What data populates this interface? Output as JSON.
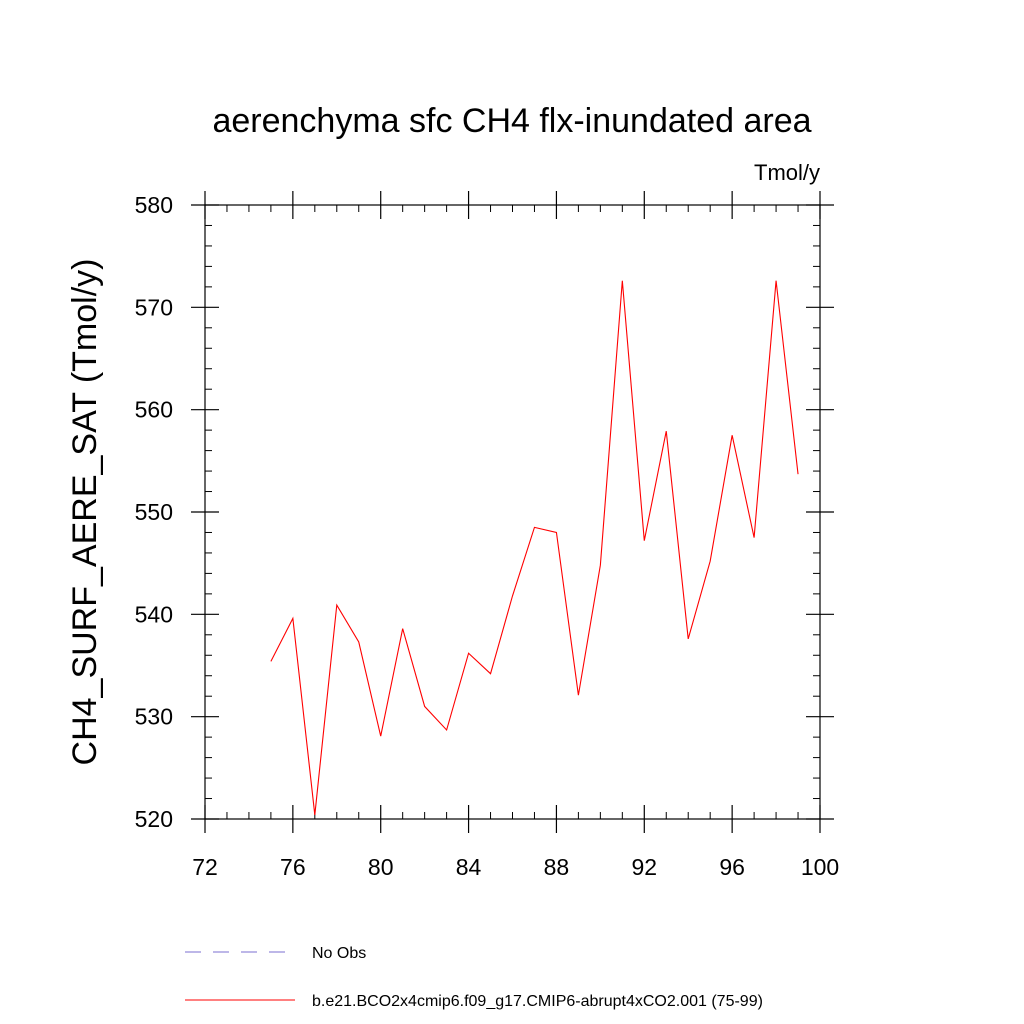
{
  "chart_data": {
    "type": "line",
    "title": "aerenchyma sfc CH4 flx-inundated area",
    "units": "Tmol/y",
    "ylabel": "CH4_SURF_AERE_SAT  (Tmol/y)",
    "xlabel": "",
    "xlim": [
      72,
      100
    ],
    "ylim": [
      520,
      580
    ],
    "xticks": [
      72,
      76,
      80,
      84,
      88,
      92,
      96,
      100
    ],
    "yticks": [
      520,
      530,
      540,
      550,
      560,
      570,
      580
    ],
    "x_minor_step": 1,
    "y_minor_step": 2,
    "grid": false,
    "legend_position": "bottom",
    "series": [
      {
        "name": "b.e21.BCO2x4cmip6.f09_g17.CMIP6-abrupt4xCO2.001 (75-99)",
        "color": "#ff0000",
        "style": "solid",
        "x": [
          75,
          76,
          77,
          78,
          79,
          80,
          81,
          82,
          83,
          84,
          85,
          86,
          87,
          88,
          89,
          90,
          91,
          92,
          93,
          94,
          95,
          96,
          97,
          98,
          99
        ],
        "values": [
          535.4,
          539.6,
          520.4,
          540.9,
          537.3,
          528.1,
          538.6,
          531.0,
          528.7,
          536.2,
          534.2,
          541.8,
          548.5,
          548.0,
          532.1,
          544.8,
          572.6,
          547.2,
          557.9,
          537.6,
          545.2,
          557.5,
          547.5,
          572.6,
          553.7
        ]
      }
    ],
    "legend": [
      {
        "label": "No Obs",
        "color": "#7b6fd0",
        "style": "dashed"
      },
      {
        "label": "b.e21.BCO2x4cmip6.f09_g17.CMIP6-abrupt4xCO2.001 (75-99)",
        "color": "#ff0000",
        "style": "solid"
      }
    ]
  }
}
